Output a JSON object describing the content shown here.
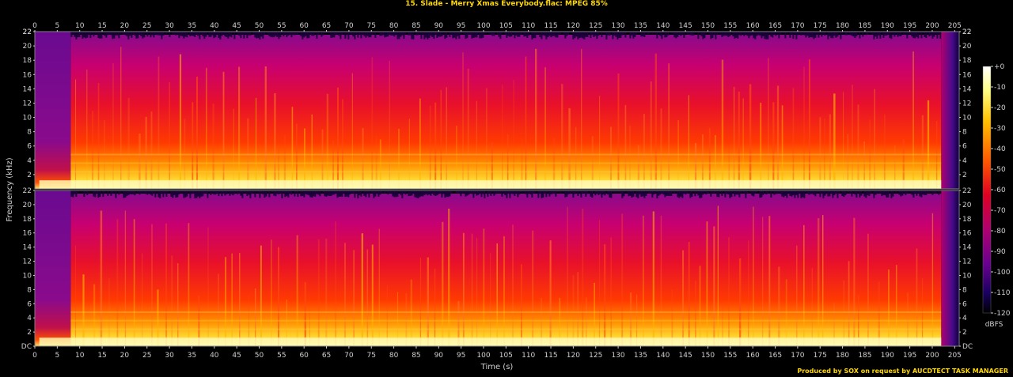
{
  "title": "15. Slade - Merry Xmas Everybody.flac: MPEG 85%",
  "credit": "Produced by SOX on request by AUCDTECT TASK MANAGER",
  "chart_data": {
    "type": "heatmap",
    "title": "15. Slade - Merry Xmas Everybody.flac: MPEG 85%",
    "xlabel": "Time (s)",
    "ylabel": "Frequency (kHz)",
    "xlim": [
      0,
      206
    ],
    "ylim": [
      0,
      22
    ],
    "x_ticks": [
      "0",
      "5",
      "10",
      "15",
      "20",
      "25",
      "30",
      "35",
      "40",
      "45",
      "50",
      "55",
      "60",
      "65",
      "70",
      "75",
      "80",
      "85",
      "90",
      "95",
      "100",
      "105",
      "110",
      "115",
      "120",
      "125",
      "130",
      "135",
      "140",
      "145",
      "150",
      "155",
      "160",
      "165",
      "170",
      "175",
      "180",
      "185",
      "190",
      "195",
      "200",
      "205"
    ],
    "y_ticks": [
      "DC",
      "2",
      "4",
      "6",
      "8",
      "10",
      "12",
      "14",
      "16",
      "18",
      "20",
      "22"
    ],
    "channels": 2,
    "colorbar": {
      "label": "dBFS",
      "ticks": [
        "+0",
        "-10",
        "-20",
        "-30",
        "-40",
        "-50",
        "-60",
        "-70",
        "-80",
        "-90",
        "-100",
        "-110",
        "-120"
      ],
      "range": [
        -120,
        0
      ]
    },
    "colors": {
      "title": "#ffd800",
      "axis": "#d0d0d0",
      "high": "#ffffe0",
      "mid": "#ff2a00",
      "low": "#a0008c",
      "floor": "#000000"
    }
  }
}
